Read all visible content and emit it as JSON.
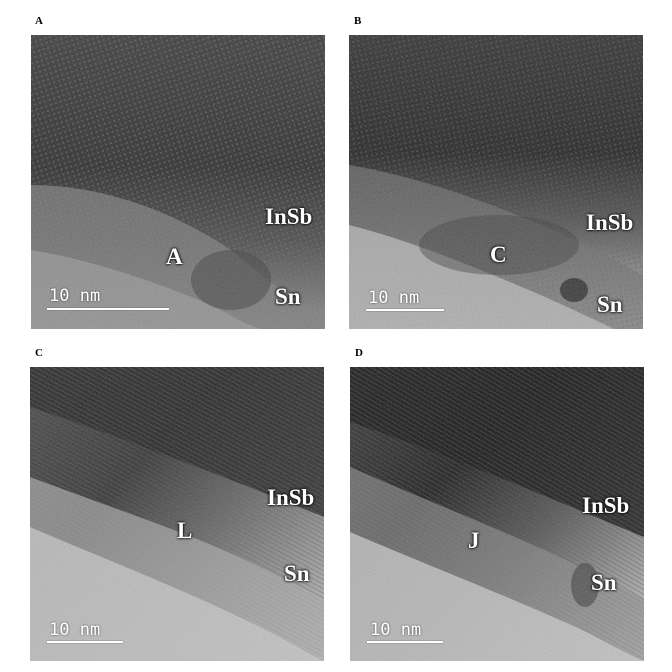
{
  "panels": [
    {
      "letter": "A",
      "layer_upper": "InSb",
      "layer_lower": "Sn",
      "region_label": "A",
      "scale_text": "10 nm"
    },
    {
      "letter": "B",
      "layer_upper": "InSb",
      "layer_lower": "Sn",
      "region_label": "C",
      "scale_text": "10 nm"
    },
    {
      "letter": "C",
      "layer_upper": "InSb",
      "layer_lower": "Sn",
      "region_label": "L",
      "scale_text": "10 nm"
    },
    {
      "letter": "D",
      "layer_upper": "InSb",
      "layer_lower": "Sn",
      "region_label": "J",
      "scale_text": "10 nm"
    }
  ]
}
